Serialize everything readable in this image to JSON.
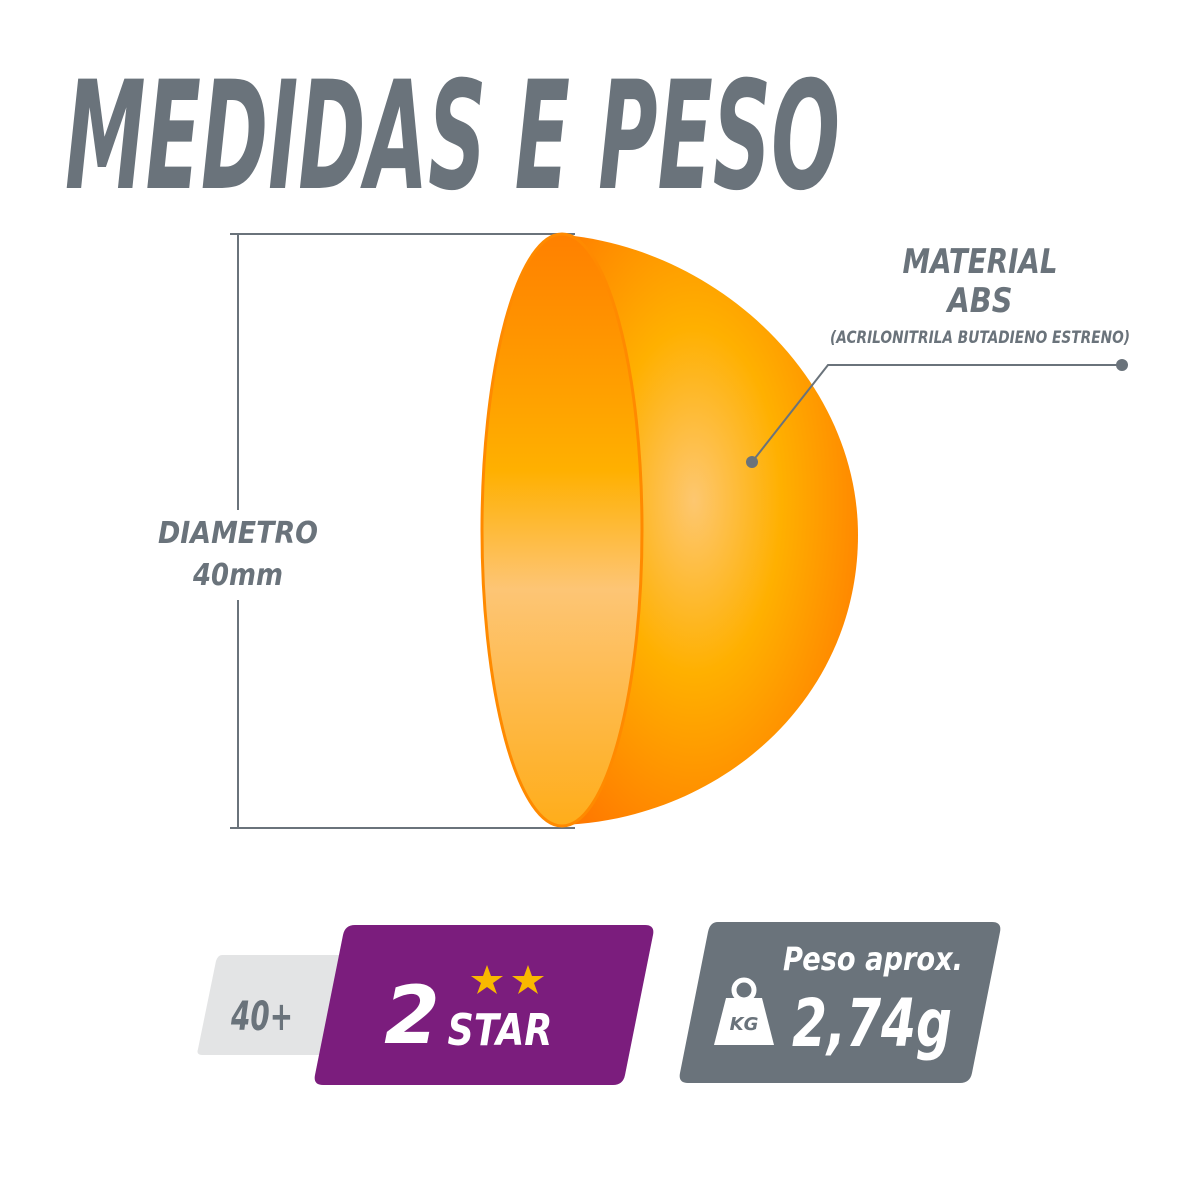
{
  "header": {
    "title": "MEDIDAS E PESO"
  },
  "material": {
    "label": "MATERIAL",
    "name": "ABS",
    "full_name": "(ACRILONITRILA BUTADIENO ESTRENO)"
  },
  "diameter": {
    "label": "DIAMETRO",
    "value": "40mm"
  },
  "badges": {
    "series": "40+",
    "rating": "2",
    "rating_label": "STAR",
    "weight_label": "Peso aprox.",
    "weight_unit_icon": "KG",
    "weight": "2,74g"
  }
}
